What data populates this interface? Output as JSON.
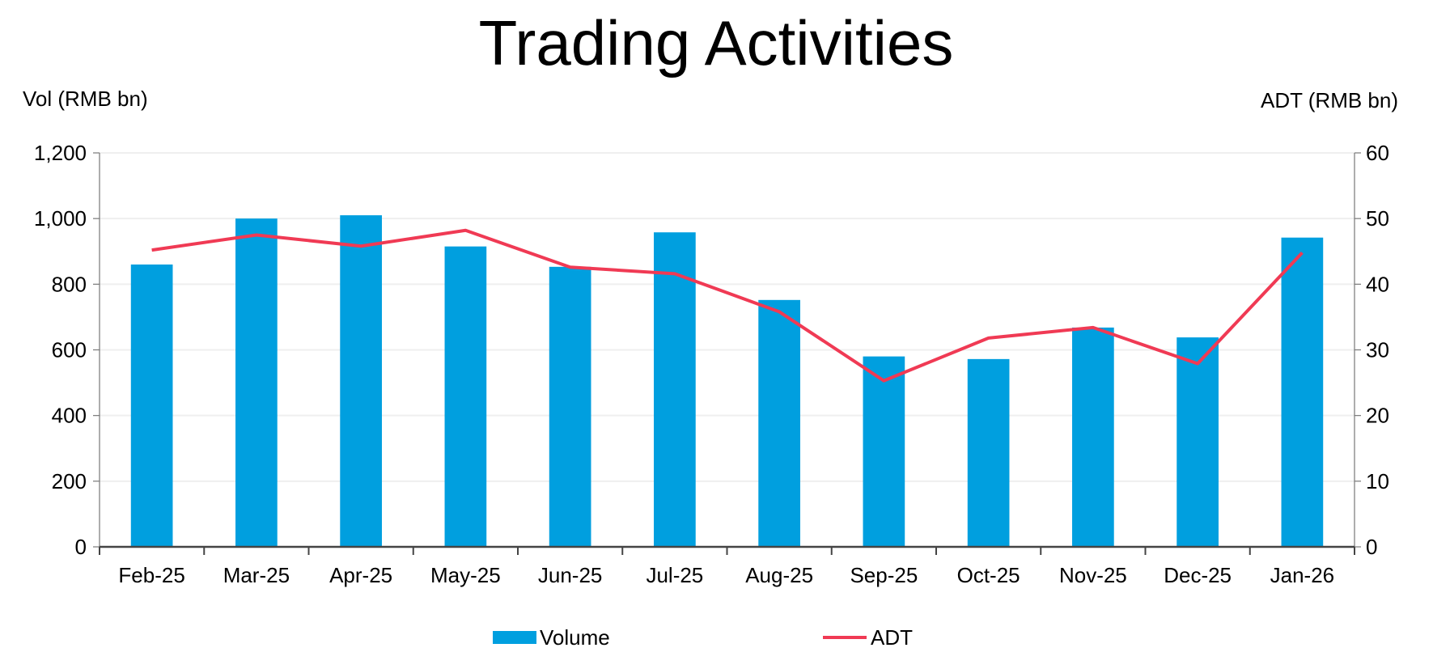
{
  "chart_data": {
    "type": "bar",
    "title": "Trading Activities",
    "ylabel": "Vol (RMB bn)",
    "y2label": "ADT (RMB bn)",
    "xlabel": "",
    "categories": [
      "Feb-25",
      "Mar-25",
      "Apr-25",
      "May-25",
      "Jun-25",
      "Jul-25",
      "Aug-25",
      "Sep-25",
      "Oct-25",
      "Nov-25",
      "Dec-25",
      "Jan-26"
    ],
    "ylim": [
      0,
      1200
    ],
    "y2lim": [
      0,
      60
    ],
    "yticks": [
      "0",
      "200",
      "400",
      "600",
      "800",
      "1,000",
      "1,200"
    ],
    "y2ticks": [
      "0",
      "10",
      "20",
      "30",
      "40",
      "50",
      "60"
    ],
    "grid": true,
    "legend_position": "bottom",
    "series": [
      {
        "name": "Volume",
        "type": "bar",
        "axis": "left",
        "color": "#009FDF",
        "values": [
          860,
          1000,
          1010,
          915,
          853,
          958,
          752,
          580,
          572,
          668,
          638,
          942
        ]
      },
      {
        "name": "ADT",
        "type": "line",
        "axis": "right",
        "color": "#F03A54",
        "values": [
          45.2,
          47.5,
          45.8,
          48.2,
          42.6,
          41.6,
          35.8,
          25.3,
          31.8,
          33.4,
          27.9,
          44.8
        ]
      }
    ]
  }
}
